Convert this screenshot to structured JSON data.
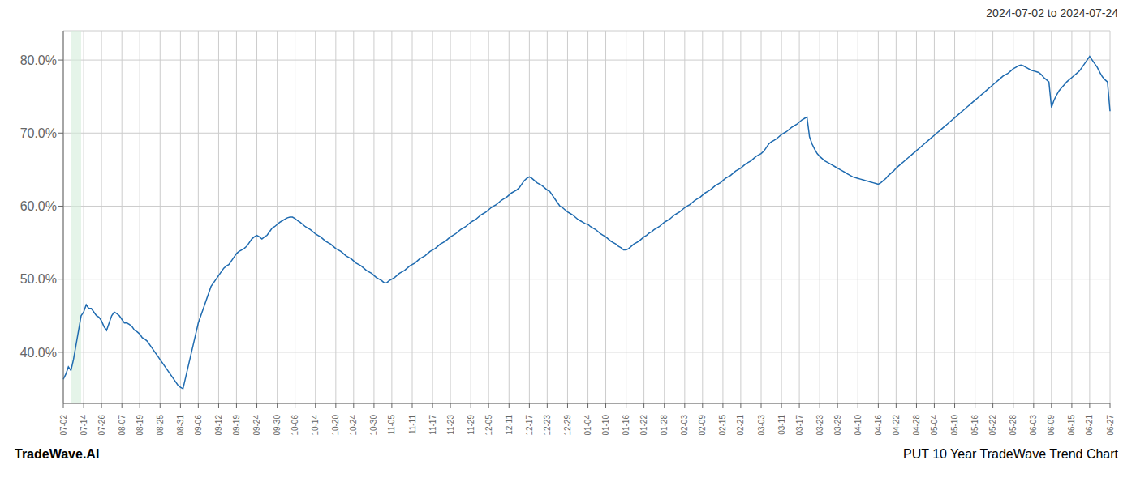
{
  "chart_data": {
    "type": "line",
    "title": "2024-07-02 to 2024-07-24",
    "subtitle": "PUT 10 Year TradeWave Trend Chart",
    "annotations": [
      {
        "text": "TradeWave.AI"
      }
    ],
    "color": "#1f6bb0",
    "grid": true,
    "bands": [
      {
        "x": [
          3,
          7
        ],
        "color": "#d4edda"
      }
    ],
    "ylim": [
      0.33,
      0.84
    ],
    "yticks": [
      {
        "value": 0.4,
        "label": "40.0%"
      },
      {
        "value": 0.5,
        "label": "50.0%"
      },
      {
        "value": 0.6,
        "label": "60.0%"
      },
      {
        "value": 0.7,
        "label": "70.0%"
      },
      {
        "value": 0.8,
        "label": "80.0%"
      }
    ],
    "categories": [
      "07-02",
      null,
      null,
      null,
      null,
      null,
      null,
      null,
      "07-14",
      null,
      null,
      null,
      null,
      null,
      null,
      "07-26",
      null,
      null,
      null,
      null,
      null,
      null,
      null,
      "08-07",
      null,
      null,
      null,
      null,
      null,
      null,
      "08-19",
      null,
      null,
      null,
      null,
      null,
      null,
      null,
      "08-25",
      null,
      null,
      null,
      null,
      null,
      null,
      null,
      "08-31",
      null,
      null,
      null,
      null,
      null,
      null,
      "09-06",
      null,
      null,
      null,
      null,
      null,
      null,
      null,
      "09-12",
      null,
      null,
      null,
      null,
      null,
      null,
      "09-19",
      null,
      null,
      null,
      null,
      null,
      null,
      null,
      "09-24",
      null,
      null,
      null,
      null,
      null,
      null,
      null,
      "09-30",
      null,
      null,
      null,
      null,
      null,
      null,
      "10-06",
      null,
      null,
      null,
      null,
      null,
      null,
      null,
      "10-14",
      null,
      null,
      null,
      null,
      null,
      null,
      null,
      "10-20",
      null,
      null,
      null,
      null,
      null,
      null,
      "10-24",
      null,
      null,
      null,
      null,
      null,
      null,
      null,
      "10-30",
      null,
      null,
      null,
      null,
      null,
      null,
      "11-05",
      null,
      null,
      null,
      null,
      null,
      null,
      null,
      "11-11",
      null,
      null,
      null,
      null,
      null,
      null,
      null,
      "11-17",
      null,
      null,
      null,
      null,
      null,
      null,
      "11-23",
      null,
      null,
      null,
      null,
      null,
      null,
      null,
      "11-29",
      null,
      null,
      null,
      null,
      null,
      null,
      "12-05",
      null,
      null,
      null,
      null,
      null,
      null,
      null,
      "12-11",
      null,
      null,
      null,
      null,
      null,
      null,
      null,
      "12-17",
      null,
      null,
      null,
      null,
      null,
      null,
      "12-23",
      null,
      null,
      null,
      null,
      null,
      null,
      null,
      "12-29",
      null,
      null,
      null,
      null,
      null,
      null,
      null,
      "01-04",
      null,
      null,
      null,
      null,
      null,
      null,
      "01-10",
      null,
      null,
      null,
      null,
      null,
      null,
      null,
      "01-16",
      null,
      null,
      null,
      null,
      null,
      null,
      "01-22",
      null,
      null,
      null,
      null,
      null,
      null,
      null,
      "01-28",
      null,
      null,
      null,
      null,
      null,
      null,
      null,
      "02-03",
      null,
      null,
      null,
      null,
      null,
      null,
      "02-09",
      null,
      null,
      null,
      null,
      null,
      null,
      null,
      "02-15",
      null,
      null,
      null,
      null,
      null,
      null,
      "02-21",
      null,
      null,
      null,
      null,
      null,
      null,
      null,
      "03-03",
      null,
      null,
      null,
      null,
      null,
      null,
      null,
      "03-11",
      null,
      null,
      null,
      null,
      null,
      null,
      "03-17",
      null,
      null,
      null,
      null,
      null,
      null,
      null,
      "03-23",
      null,
      null,
      null,
      null,
      null,
      null,
      "03-29",
      null,
      null,
      null,
      null,
      null,
      null,
      null,
      "04-10",
      null,
      null,
      null,
      null,
      null,
      null,
      null,
      "04-16",
      null,
      null,
      null,
      null,
      null,
      null,
      "04-22",
      null,
      null,
      null,
      null,
      null,
      null,
      null,
      "04-28",
      null,
      null,
      null,
      null,
      null,
      null,
      "05-04",
      null,
      null,
      null,
      null,
      null,
      null,
      null,
      "05-10",
      null,
      null,
      null,
      null,
      null,
      null,
      null,
      "05-16",
      null,
      null,
      null,
      null,
      null,
      null,
      "05-22",
      null,
      null,
      null,
      null,
      null,
      null,
      null,
      "05-28",
      null,
      null,
      null,
      null,
      null,
      null,
      null,
      "06-03",
      null,
      null,
      null,
      null,
      null,
      null,
      "06-09",
      null,
      null,
      null,
      null,
      null,
      null,
      null,
      "06-15",
      null,
      null,
      null,
      null,
      null,
      null,
      "06-21",
      null,
      null,
      null,
      null,
      null,
      null,
      null,
      "06-27"
    ],
    "values": [
      0.363,
      0.37,
      0.38,
      0.375,
      0.39,
      0.41,
      0.43,
      0.45,
      0.455,
      0.465,
      0.46,
      0.46,
      0.455,
      0.45,
      0.448,
      0.443,
      0.435,
      0.43,
      0.44,
      0.45,
      0.455,
      0.453,
      0.45,
      0.445,
      0.44,
      0.44,
      0.438,
      0.435,
      0.43,
      0.428,
      0.425,
      0.42,
      0.418,
      0.415,
      0.41,
      0.405,
      0.4,
      0.395,
      0.39,
      0.385,
      0.38,
      0.375,
      0.37,
      0.365,
      0.36,
      0.355,
      0.352,
      0.35,
      0.365,
      0.38,
      0.395,
      0.41,
      0.425,
      0.44,
      0.45,
      0.46,
      0.47,
      0.48,
      0.49,
      0.495,
      0.5,
      0.505,
      0.51,
      0.515,
      0.518,
      0.52,
      0.525,
      0.53,
      0.535,
      0.538,
      0.54,
      0.542,
      0.545,
      0.55,
      0.555,
      0.558,
      0.56,
      0.558,
      0.555,
      0.558,
      0.56,
      0.565,
      0.57,
      0.572,
      0.575,
      0.578,
      0.58,
      0.582,
      0.584,
      0.585,
      0.585,
      0.583,
      0.58,
      0.578,
      0.575,
      0.572,
      0.57,
      0.568,
      0.565,
      0.562,
      0.56,
      0.558,
      0.555,
      0.552,
      0.55,
      0.548,
      0.545,
      0.542,
      0.54,
      0.538,
      0.535,
      0.532,
      0.53,
      0.528,
      0.525,
      0.522,
      0.52,
      0.518,
      0.515,
      0.512,
      0.51,
      0.508,
      0.505,
      0.502,
      0.5,
      0.498,
      0.495,
      0.495,
      0.498,
      0.5,
      0.502,
      0.505,
      0.508,
      0.51,
      0.512,
      0.515,
      0.518,
      0.52,
      0.522,
      0.525,
      0.528,
      0.53,
      0.532,
      0.535,
      0.538,
      0.54,
      0.542,
      0.545,
      0.548,
      0.55,
      0.552,
      0.555,
      0.558,
      0.56,
      0.562,
      0.565,
      0.568,
      0.57,
      0.572,
      0.575,
      0.578,
      0.58,
      0.582,
      0.585,
      0.588,
      0.59,
      0.592,
      0.595,
      0.598,
      0.6,
      0.602,
      0.605,
      0.608,
      0.61,
      0.612,
      0.615,
      0.618,
      0.62,
      0.622,
      0.625,
      0.63,
      0.635,
      0.638,
      0.64,
      0.638,
      0.635,
      0.632,
      0.63,
      0.628,
      0.625,
      0.622,
      0.62,
      0.615,
      0.61,
      0.605,
      0.6,
      0.598,
      0.595,
      0.592,
      0.59,
      0.588,
      0.585,
      0.582,
      0.58,
      0.578,
      0.576,
      0.575,
      0.572,
      0.57,
      0.568,
      0.565,
      0.562,
      0.56,
      0.558,
      0.555,
      0.552,
      0.55,
      0.548,
      0.545,
      0.543,
      0.54,
      0.54,
      0.542,
      0.545,
      0.548,
      0.55,
      0.552,
      0.555,
      0.558,
      0.56,
      0.563,
      0.565,
      0.568,
      0.57,
      0.572,
      0.575,
      0.578,
      0.58,
      0.582,
      0.585,
      0.588,
      0.59,
      0.592,
      0.595,
      0.598,
      0.6,
      0.602,
      0.605,
      0.608,
      0.61,
      0.612,
      0.615,
      0.618,
      0.62,
      0.622,
      0.625,
      0.628,
      0.63,
      0.632,
      0.635,
      0.638,
      0.64,
      0.642,
      0.645,
      0.648,
      0.65,
      0.652,
      0.655,
      0.658,
      0.66,
      0.662,
      0.665,
      0.668,
      0.67,
      0.672,
      0.675,
      0.68,
      0.685,
      0.688,
      0.69,
      0.692,
      0.695,
      0.698,
      0.7,
      0.702,
      0.705,
      0.708,
      0.71,
      0.712,
      0.715,
      0.718,
      0.72,
      0.722,
      0.695,
      0.685,
      0.678,
      0.672,
      0.668,
      0.665,
      0.662,
      0.66,
      0.658,
      0.656,
      0.654,
      0.652,
      0.65,
      0.648,
      0.646,
      0.644,
      0.642,
      0.64,
      0.639,
      0.638,
      0.637,
      0.636,
      0.635,
      0.634,
      0.633,
      0.632,
      0.631,
      0.63,
      0.632,
      0.635,
      0.638,
      0.642,
      0.645,
      0.648,
      0.652,
      0.655,
      0.658,
      0.661,
      0.664,
      0.667,
      0.67,
      0.673,
      0.676,
      0.679,
      0.682,
      0.685,
      0.688,
      0.691,
      0.694,
      0.697,
      0.7,
      0.703,
      0.706,
      0.709,
      0.712,
      0.715,
      0.718,
      0.721,
      0.724,
      0.727,
      0.73,
      0.733,
      0.736,
      0.739,
      0.742,
      0.745,
      0.748,
      0.751,
      0.754,
      0.757,
      0.76,
      0.763,
      0.766,
      0.769,
      0.772,
      0.775,
      0.778,
      0.78,
      0.782,
      0.785,
      0.788,
      0.79,
      0.792,
      0.793,
      0.792,
      0.79,
      0.788,
      0.786,
      0.785,
      0.784,
      0.783,
      0.78,
      0.776,
      0.773,
      0.77,
      0.735,
      0.745,
      0.752,
      0.758,
      0.762,
      0.766,
      0.77,
      0.773,
      0.776,
      0.779,
      0.782,
      0.785,
      0.79,
      0.795,
      0.8,
      0.805,
      0.8,
      0.795,
      0.79,
      0.783,
      0.777,
      0.773,
      0.77,
      0.73
    ]
  }
}
